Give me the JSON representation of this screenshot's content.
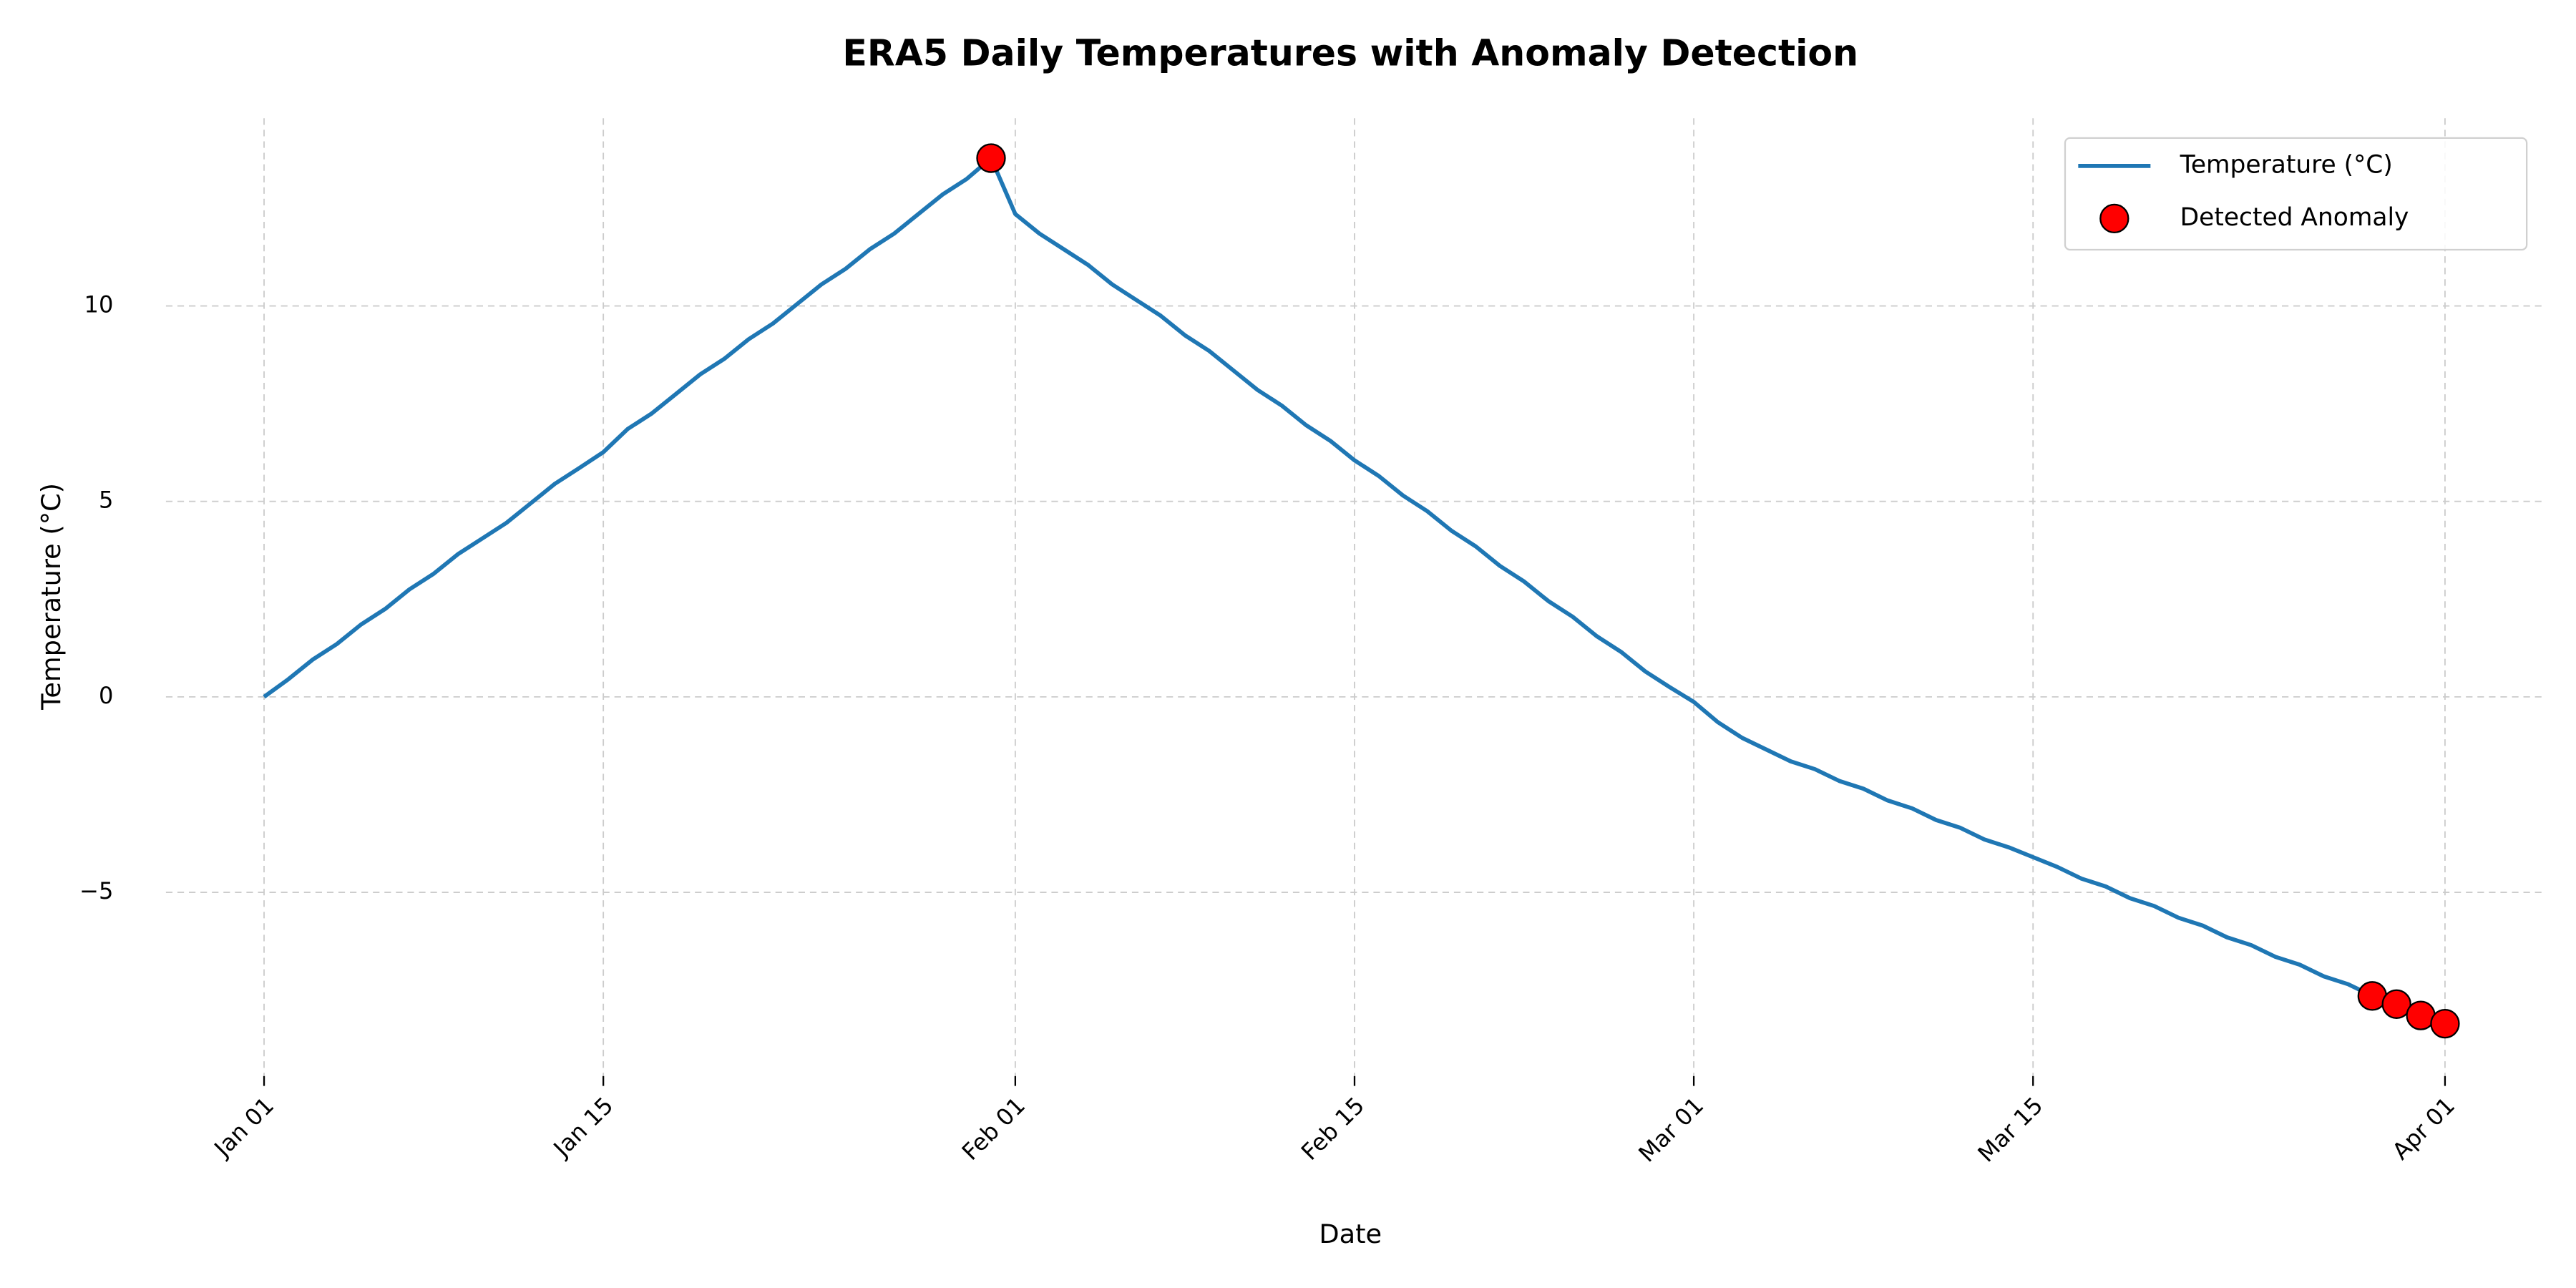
{
  "chart_data": {
    "type": "line",
    "title": "ERA5 Daily Temperatures with Anomaly Detection",
    "xlabel": "Date",
    "ylabel": "Temperature (°C)",
    "x": [
      "Jan 01",
      "Jan 02",
      "Jan 03",
      "Jan 04",
      "Jan 05",
      "Jan 06",
      "Jan 07",
      "Jan 08",
      "Jan 09",
      "Jan 10",
      "Jan 11",
      "Jan 12",
      "Jan 13",
      "Jan 14",
      "Jan 15",
      "Jan 16",
      "Jan 17",
      "Jan 18",
      "Jan 19",
      "Jan 20",
      "Jan 21",
      "Jan 22",
      "Jan 23",
      "Jan 24",
      "Jan 25",
      "Jan 26",
      "Jan 27",
      "Jan 28",
      "Jan 29",
      "Jan 30",
      "Jan 31",
      "Feb 01",
      "Feb 02",
      "Feb 03",
      "Feb 04",
      "Feb 05",
      "Feb 06",
      "Feb 07",
      "Feb 08",
      "Feb 09",
      "Feb 10",
      "Feb 11",
      "Feb 12",
      "Feb 13",
      "Feb 14",
      "Feb 15",
      "Feb 16",
      "Feb 17",
      "Feb 18",
      "Feb 19",
      "Feb 20",
      "Feb 21",
      "Feb 22",
      "Feb 23",
      "Feb 24",
      "Feb 25",
      "Feb 26",
      "Feb 27",
      "Feb 28",
      "Mar 01",
      "Mar 02",
      "Mar 03",
      "Mar 04",
      "Mar 05",
      "Mar 06",
      "Mar 07",
      "Mar 08",
      "Mar 09",
      "Mar 10",
      "Mar 11",
      "Mar 12",
      "Mar 13",
      "Mar 14",
      "Mar 15",
      "Mar 16",
      "Mar 17",
      "Mar 18",
      "Mar 19",
      "Mar 20",
      "Mar 21",
      "Mar 22",
      "Mar 23",
      "Mar 24",
      "Mar 25",
      "Mar 26",
      "Mar 27",
      "Mar 28",
      "Mar 29",
      "Mar 30",
      "Mar 31",
      "Apr 01"
    ],
    "series": [
      {
        "name": "Temperature (°C)",
        "color": "#1f77b4",
        "values": [
          0,
          0.45,
          0.95,
          1.35,
          1.85,
          2.25,
          2.75,
          3.15,
          3.65,
          4.05,
          4.45,
          4.95,
          5.45,
          5.85,
          6.26,
          6.85,
          7.25,
          7.75,
          8.25,
          8.65,
          9.15,
          9.55,
          10.05,
          10.55,
          10.95,
          11.45,
          11.85,
          12.35,
          12.85,
          13.25,
          13.78,
          12.35,
          11.85,
          11.45,
          11.05,
          10.55,
          10.15,
          9.75,
          9.25,
          8.85,
          8.35,
          7.85,
          7.45,
          6.95,
          6.55,
          6.05,
          5.65,
          5.15,
          4.75,
          4.25,
          3.85,
          3.35,
          2.95,
          2.45,
          2.05,
          1.55,
          1.15,
          0.65,
          0.25,
          -0.13,
          -0.65,
          -1.05,
          -1.35,
          -1.65,
          -1.85,
          -2.15,
          -2.35,
          -2.65,
          -2.85,
          -3.15,
          -3.35,
          -3.65,
          -3.85,
          -4.1,
          -4.35,
          -4.65,
          -4.85,
          -5.15,
          -5.35,
          -5.65,
          -5.85,
          -6.15,
          -6.35,
          -6.65,
          -6.85,
          -7.15,
          -7.35,
          -7.65,
          -7.86,
          -8.15,
          -8.36
        ]
      },
      {
        "name": "Detected Anomaly",
        "type": "scatter",
        "color": "#ff0000",
        "x": [
          "Jan 31",
          "Mar 29",
          "Mar 30",
          "Mar 31",
          "Apr 01"
        ],
        "values": [
          13.78,
          -7.65,
          -7.86,
          -8.15,
          -8.36
        ]
      }
    ],
    "xticks": [
      "Jan 01",
      "Jan 15",
      "Feb 01",
      "Feb 15",
      "Mar 01",
      "Mar 15",
      "Apr 01"
    ],
    "ylim": [
      -9.7,
      14.8
    ],
    "yticks": [
      {
        "value": -5,
        "label": "−5"
      },
      0,
      5,
      10
    ],
    "grid": true,
    "legend": "upper right"
  }
}
